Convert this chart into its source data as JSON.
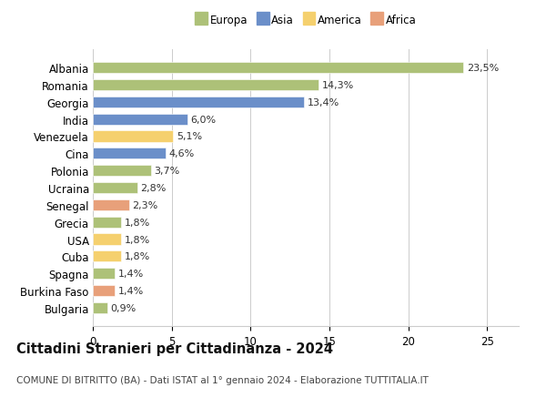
{
  "countries": [
    "Albania",
    "Romania",
    "Georgia",
    "India",
    "Venezuela",
    "Cina",
    "Polonia",
    "Ucraina",
    "Senegal",
    "Grecia",
    "USA",
    "Cuba",
    "Spagna",
    "Burkina Faso",
    "Bulgaria"
  ],
  "values": [
    23.5,
    14.3,
    13.4,
    6.0,
    5.1,
    4.6,
    3.7,
    2.8,
    2.3,
    1.8,
    1.8,
    1.8,
    1.4,
    1.4,
    0.9
  ],
  "labels": [
    "23,5%",
    "14,3%",
    "13,4%",
    "6,0%",
    "5,1%",
    "4,6%",
    "3,7%",
    "2,8%",
    "2,3%",
    "1,8%",
    "1,8%",
    "1,8%",
    "1,4%",
    "1,4%",
    "0,9%"
  ],
  "continents": [
    "Europa",
    "Europa",
    "Asia",
    "Asia",
    "America",
    "Asia",
    "Europa",
    "Europa",
    "Africa",
    "Europa",
    "America",
    "America",
    "Europa",
    "Africa",
    "Europa"
  ],
  "continent_colors": {
    "Europa": "#adc178",
    "Asia": "#6b8fc9",
    "America": "#f5d06e",
    "Africa": "#e8a07a"
  },
  "legend_items": [
    {
      "label": "Europa",
      "color": "#adc178"
    },
    {
      "label": "Asia",
      "color": "#6b8fc9"
    },
    {
      "label": "America",
      "color": "#f5d06e"
    },
    {
      "label": "Africa",
      "color": "#e8a07a"
    }
  ],
  "title": "Cittadini Stranieri per Cittadinanza - 2024",
  "subtitle": "COMUNE DI BITRITTO (BA) - Dati ISTAT al 1° gennaio 2024 - Elaborazione TUTTITALIA.IT",
  "xlim": [
    0,
    27
  ],
  "xticks": [
    0,
    5,
    10,
    15,
    20,
    25
  ],
  "background_color": "#ffffff",
  "grid_color": "#cccccc",
  "bar_height": 0.65,
  "label_fontsize": 8,
  "tick_fontsize": 8.5,
  "title_fontsize": 10.5,
  "subtitle_fontsize": 7.5
}
